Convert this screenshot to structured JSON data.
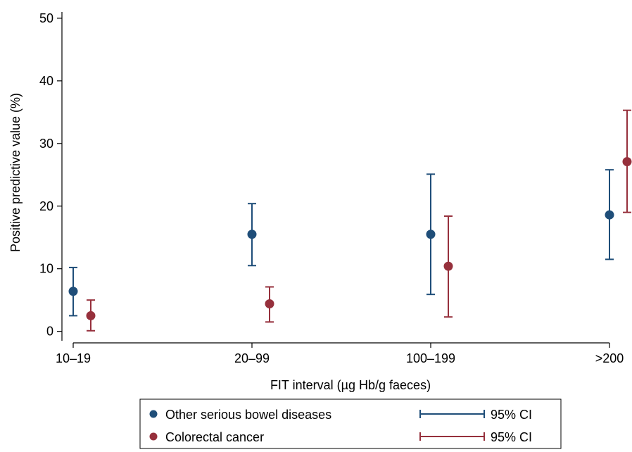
{
  "chart_data": {
    "type": "scatter",
    "title": "",
    "xlabel": "FIT interval (µg Hb/g faeces)",
    "ylabel": "Positive predictive value (%)",
    "categories": [
      "10–19",
      "20–99",
      "100–199",
      ">200"
    ],
    "yticks": [
      0,
      10,
      20,
      30,
      40,
      50
    ],
    "ylim": [
      -1.5,
      51
    ],
    "grid": false,
    "legend_position": "bottom",
    "series": [
      {
        "name": "Other serious bowel diseases",
        "ci_label": "95% CI",
        "color": "#1f4e79",
        "values": [
          6.4,
          15.5,
          15.5,
          18.6
        ],
        "ci_low": [
          2.5,
          10.5,
          5.9,
          11.5
        ],
        "ci_high": [
          10.2,
          20.4,
          25.1,
          25.8
        ]
      },
      {
        "name": "Colorectal cancer",
        "ci_label": "95% CI",
        "color": "#96303c",
        "values": [
          2.5,
          4.4,
          10.4,
          27.1
        ],
        "ci_low": [
          0.1,
          1.5,
          2.3,
          19.0
        ],
        "ci_high": [
          5.0,
          7.1,
          18.4,
          35.3
        ]
      }
    ]
  }
}
